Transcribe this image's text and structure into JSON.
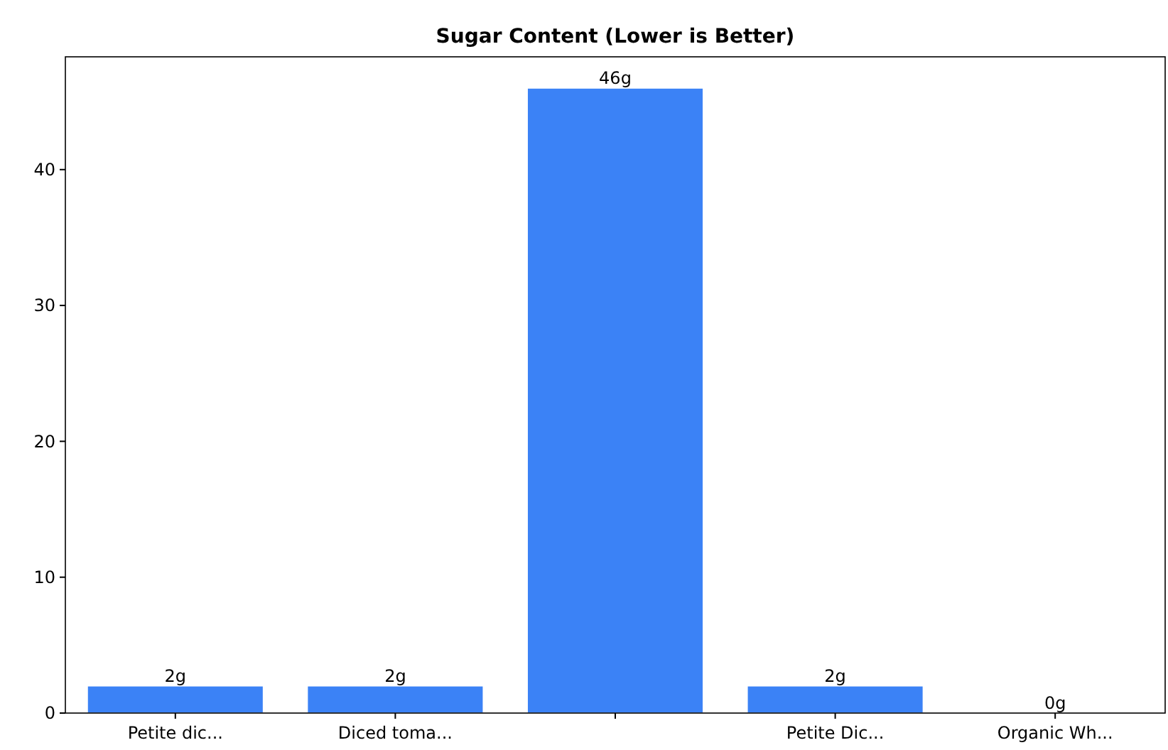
{
  "chart_data": {
    "type": "bar",
    "title": "Sugar Content (Lower is Better)",
    "categories": [
      "Petite dic...",
      "Diced toma...",
      null,
      "Petite Dic...",
      "Organic Wh..."
    ],
    "values": [
      2,
      2,
      46,
      2,
      0
    ],
    "value_labels": [
      "2g",
      "2g",
      "46g",
      "2g",
      "0g"
    ],
    "color": "#3b82f6",
    "ylim": [
      0,
      48.3
    ],
    "yticks": [
      0,
      10,
      20,
      30,
      40
    ],
    "grid": false
  }
}
